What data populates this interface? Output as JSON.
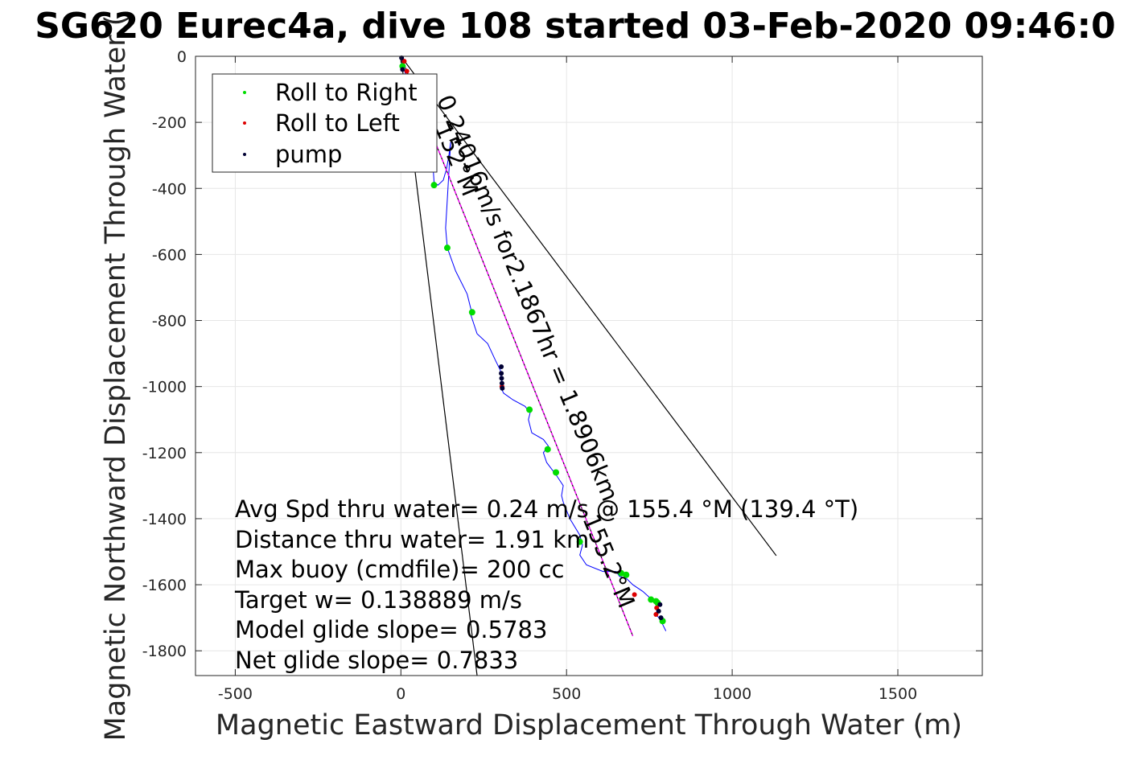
{
  "chart_data": {
    "type": "line",
    "title": "SG620 Eurec4a, dive 108 started 03-Feb-2020 09:46:0",
    "xlabel": "Magnetic Eastward Displacement Through Water (m)",
    "ylabel": "Magnetic Northward Displacement Through Water (",
    "xlim": [
      -620,
      1755
    ],
    "ylim": [
      -1875,
      0
    ],
    "xticks": [
      -500,
      0,
      500,
      1000,
      1500
    ],
    "xtick_labels": [
      "-500",
      "0",
      "500",
      "1000",
      "1500"
    ],
    "yticks": [
      0,
      -200,
      -400,
      -600,
      -800,
      -1000,
      -1200,
      -1400,
      -1600,
      -1800
    ],
    "ytick_labels": [
      "0",
      "-200",
      "-400",
      "-600",
      "-800",
      "-1000",
      "-1200",
      "-1400",
      "-1600",
      "-1800"
    ],
    "grid": true,
    "legend": {
      "position": "top-left",
      "entries": [
        {
          "label": "Roll to Right",
          "color": "#00dd00"
        },
        {
          "label": "Roll to Left",
          "color": "#dd0000"
        },
        {
          "label": "pump",
          "color": "#000033"
        }
      ]
    },
    "series": [
      {
        "color": "#0000ff",
        "x": [
          0,
          5,
          15,
          40,
          70,
          95,
          100,
          112,
          128,
          138,
          145,
          150,
          142,
          135,
          140,
          165,
          200,
          215,
          210,
          230,
          262,
          285,
          300,
          305,
          305,
          310,
          338,
          375,
          390,
          385,
          395,
          430,
          445,
          430,
          440,
          470,
          490,
          485,
          490,
          510,
          540,
          548,
          540,
          560,
          610,
          650,
          660,
          680,
          700,
          730,
          752,
          770,
          775,
          770,
          783,
          790,
          800
        ],
        "y": [
          0,
          -20,
          -60,
          -130,
          -210,
          -300,
          -380,
          -390,
          -375,
          -340,
          -300,
          -260,
          -400,
          -520,
          -580,
          -650,
          -720,
          -780,
          -780,
          -840,
          -870,
          -920,
          -950,
          -990,
          -1010,
          -1020,
          -1040,
          -1060,
          -1080,
          -1100,
          -1140,
          -1160,
          -1180,
          -1200,
          -1230,
          -1270,
          -1300,
          -1330,
          -1350,
          -1400,
          -1450,
          -1480,
          -1510,
          -1540,
          -1560,
          -1560,
          -1575,
          -1580,
          -1600,
          -1620,
          -1640,
          -1655,
          -1670,
          -1690,
          -1705,
          -1720,
          -1740
        ]
      },
      {
        "color": "#ff00ff",
        "x": [
          0,
          700
        ],
        "y": [
          0,
          -1755
        ]
      }
    ],
    "markers": {
      "roll_right": {
        "color": "#00dd00",
        "x": [
          5,
          100,
          140,
          215,
          388,
          443,
          468,
          540,
          665,
          680,
          755,
          770,
          775,
          790
        ],
        "y": [
          -30,
          -390,
          -580,
          -775,
          -1070,
          -1190,
          -1260,
          -1470,
          -1565,
          -1570,
          -1645,
          -1650,
          -1655,
          -1710
        ]
      },
      "roll_left": {
        "color": "#dd0000",
        "x": [
          10,
          18,
          305,
          705,
          772,
          770
        ],
        "y": [
          -15,
          -45,
          -1000,
          -1630,
          -1670,
          -1690
        ]
      },
      "pump": {
        "color": "#000033",
        "x": [
          2,
          5,
          303,
          303,
          304,
          305,
          306,
          782,
          778,
          785
        ],
        "y": [
          -5,
          -40,
          -940,
          -960,
          -975,
          -990,
          -1005,
          -1660,
          -1680,
          -1700
        ]
      }
    },
    "reference_lines": [
      {
        "name": "heading-bound-1",
        "color": "#000000",
        "x": [
          0,
          1133
        ],
        "y": [
          0,
          -1512
        ]
      },
      {
        "name": "heading-bound-2",
        "color": "#000000",
        "x": [
          0,
          230
        ],
        "y": [
          0,
          -1875
        ]
      },
      {
        "name": "average-track",
        "color": "#000000",
        "x": [
          0,
          700
        ],
        "y": [
          0,
          -1755
        ]
      }
    ],
    "rotated_labels": [
      {
        "text": "0.24016m/s for2.1867hr = 1.8906km",
        "x": 108,
        "y": -130,
        "angle": 67.5
      },
      {
        "text": "152°M",
        "x": 102,
        "y": -215,
        "angle": 67.5
      },
      {
        "text": "155.2°M",
        "x": 548,
        "y": -1400,
        "angle": 67.5
      }
    ],
    "annotations": [
      "Avg Spd thru water=  0.24 m/s @ 155.4 °M (139.4 °T)",
      "Distance thru water=  1.91 km",
      "Max buoy (cmdfile)= 200 cc",
      "Target w= 0.138889 m/s",
      "Model glide slope= 0.5783",
      "Net glide slope= 0.7833"
    ]
  }
}
